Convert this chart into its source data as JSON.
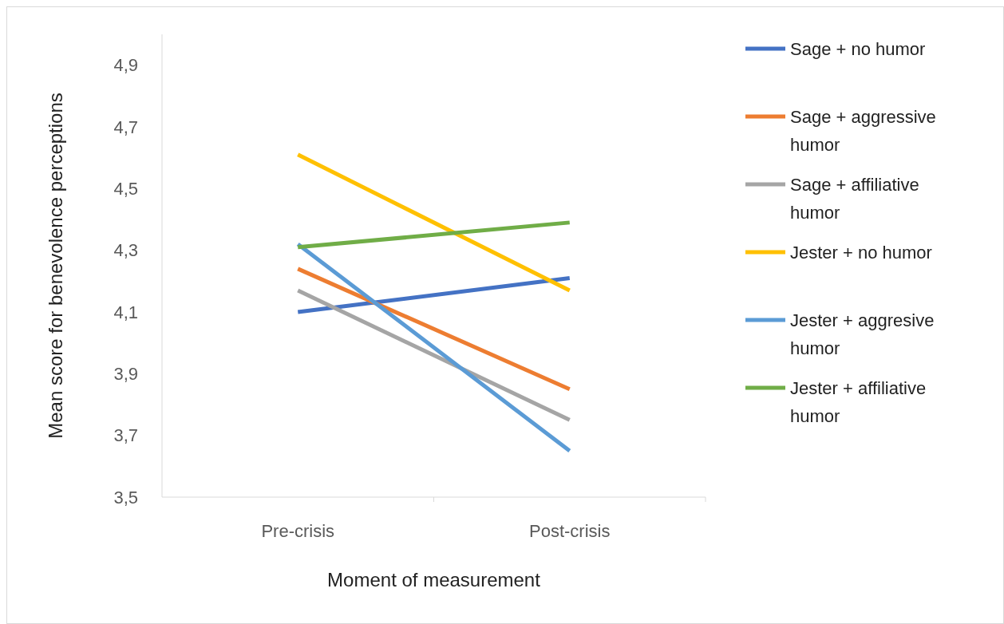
{
  "chart_data": {
    "type": "line",
    "xlabel": "Moment of measurement",
    "ylabel": "Mean score for benevolence perceptions",
    "categories": [
      "Pre-crisis",
      "Post-crisis"
    ],
    "series": [
      {
        "name": "Sage + no humor",
        "color": "#4472c4",
        "values": [
          4.1,
          4.21
        ]
      },
      {
        "name": "Sage + aggressive humor",
        "color": "#ed7d31",
        "values": [
          4.24,
          3.85
        ]
      },
      {
        "name": "Sage + affiliative humor",
        "color": "#a5a5a5",
        "values": [
          4.17,
          3.75
        ]
      },
      {
        "name": "Jester + no humor",
        "color": "#ffc000",
        "values": [
          4.61,
          4.17
        ]
      },
      {
        "name": "Jester + aggresive humor",
        "color": "#5b9bd5",
        "values": [
          4.32,
          3.65
        ]
      },
      {
        "name": "Jester + affiliative humor",
        "color": "#70ad47",
        "values": [
          4.31,
          4.39
        ]
      }
    ],
    "ylim": [
      3.5,
      5.0
    ],
    "yticks": [
      {
        "value": 3.5,
        "label": "3,5"
      },
      {
        "value": 3.7,
        "label": "3,7"
      },
      {
        "value": 3.9,
        "label": "3,9"
      },
      {
        "value": 4.1,
        "label": "4,1"
      },
      {
        "value": 4.3,
        "label": "4,3"
      },
      {
        "value": 4.5,
        "label": "4,5"
      },
      {
        "value": 4.7,
        "label": "4,7"
      },
      {
        "value": 4.9,
        "label": "4,9"
      }
    ],
    "legend": "right",
    "marker": "none",
    "line_style": "solid"
  }
}
